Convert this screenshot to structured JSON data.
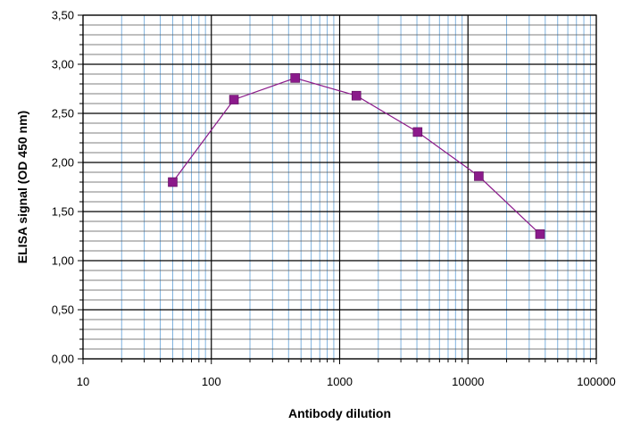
{
  "chart_data": {
    "type": "line",
    "title": "",
    "xlabel": "Antibody dilution",
    "ylabel": "ELISA signal (OD 450 nm)",
    "x_scale": "log",
    "xlim": [
      10,
      100000
    ],
    "ylim": [
      0,
      3.5
    ],
    "x_tick_labels": [
      "10",
      "100",
      "1000",
      "10000",
      "100000"
    ],
    "y_tick_labels": [
      "0,00",
      "0,50",
      "1,00",
      "1,50",
      "2,00",
      "2,50",
      "3,00",
      "3,50"
    ],
    "grid": true,
    "legend": "none",
    "series": [
      {
        "x": [
          50,
          150,
          450,
          1350,
          4050,
          12150,
          36450
        ],
        "y": [
          1.8,
          2.64,
          2.86,
          2.68,
          2.31,
          1.86,
          1.27
        ],
        "color": "#8b1a8b",
        "marker": "square"
      }
    ],
    "colors": {
      "major_grid": "#000000",
      "minor_grid_y": "#555555",
      "minor_grid_x": "#7fb3e0",
      "line": "#8b1a8b"
    }
  }
}
